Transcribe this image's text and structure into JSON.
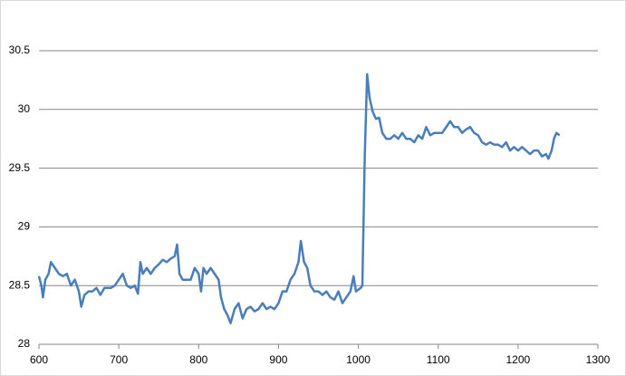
{
  "chart_data": {
    "type": "line",
    "x": [
      600,
      603,
      605,
      608,
      612,
      615,
      620,
      625,
      630,
      635,
      640,
      645,
      650,
      653,
      657,
      662,
      667,
      672,
      677,
      682,
      690,
      695,
      700,
      705,
      710,
      715,
      720,
      724,
      727,
      730,
      735,
      740,
      745,
      750,
      755,
      760,
      765,
      770,
      773,
      776,
      780,
      785,
      790,
      795,
      800,
      803,
      806,
      810,
      815,
      820,
      825,
      828,
      832,
      836,
      840,
      845,
      850,
      855,
      860,
      865,
      870,
      875,
      880,
      885,
      890,
      895,
      900,
      905,
      910,
      915,
      920,
      925,
      928,
      932,
      936,
      940,
      945,
      950,
      955,
      960,
      965,
      970,
      975,
      980,
      985,
      990,
      994,
      997,
      1003,
      1005,
      1008,
      1011,
      1014,
      1018,
      1022,
      1026,
      1030,
      1035,
      1040,
      1045,
      1050,
      1055,
      1060,
      1065,
      1070,
      1075,
      1080,
      1085,
      1090,
      1095,
      1100,
      1105,
      1110,
      1115,
      1120,
      1125,
      1130,
      1135,
      1140,
      1145,
      1150,
      1155,
      1160,
      1165,
      1170,
      1175,
      1180,
      1185,
      1190,
      1195,
      1200,
      1205,
      1210,
      1215,
      1220,
      1225,
      1230,
      1235,
      1238,
      1242,
      1245,
      1248,
      1252
    ],
    "series": [
      {
        "color": "#4a7ebb",
        "values": [
          28.58,
          28.5,
          28.4,
          28.55,
          28.6,
          28.7,
          28.65,
          28.6,
          28.58,
          28.6,
          28.5,
          28.55,
          28.45,
          28.32,
          28.42,
          28.45,
          28.45,
          28.48,
          28.42,
          28.48,
          28.48,
          28.5,
          28.55,
          28.6,
          28.5,
          28.48,
          28.5,
          28.43,
          28.7,
          28.6,
          28.65,
          28.6,
          28.65,
          28.68,
          28.72,
          28.7,
          28.73,
          28.75,
          28.85,
          28.6,
          28.55,
          28.55,
          28.55,
          28.65,
          28.6,
          28.45,
          28.65,
          28.6,
          28.65,
          28.6,
          28.55,
          28.4,
          28.3,
          28.25,
          28.18,
          28.3,
          28.35,
          28.22,
          28.3,
          28.32,
          28.28,
          28.3,
          28.35,
          28.3,
          28.32,
          28.3,
          28.35,
          28.45,
          28.45,
          28.55,
          28.6,
          28.7,
          28.88,
          28.7,
          28.65,
          28.5,
          28.45,
          28.45,
          28.42,
          28.45,
          28.4,
          28.38,
          28.45,
          28.35,
          28.4,
          28.45,
          28.58,
          28.45,
          28.48,
          28.5,
          29.6,
          30.3,
          30.1,
          29.98,
          29.92,
          29.93,
          29.8,
          29.75,
          29.75,
          29.78,
          29.75,
          29.8,
          29.75,
          29.75,
          29.72,
          29.78,
          29.75,
          29.85,
          29.78,
          29.8,
          29.8,
          29.8,
          29.85,
          29.9,
          29.85,
          29.85,
          29.8,
          29.83,
          29.85,
          29.8,
          29.78,
          29.72,
          29.7,
          29.72,
          29.7,
          29.7,
          29.68,
          29.72,
          29.65,
          29.68,
          29.65,
          29.68,
          29.65,
          29.62,
          29.65,
          29.65,
          29.6,
          29.62,
          29.58,
          29.65,
          29.75,
          29.8,
          29.78
        ]
      }
    ],
    "xlim": [
      600,
      1300
    ],
    "xticks": [
      600,
      700,
      800,
      900,
      1000,
      1100,
      1200,
      1300
    ],
    "ylim": [
      28,
      30.5
    ],
    "yticks": [
      28,
      28.5,
      29,
      29.5,
      30,
      30.5
    ],
    "grid": true
  }
}
